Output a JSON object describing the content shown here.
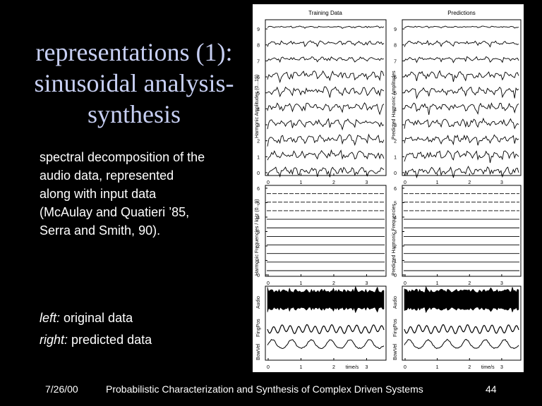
{
  "slide": {
    "title_lines": [
      "representations (1):",
      "sinusoidal analysis-",
      "synthesis"
    ],
    "body_lines": [
      "spectral decomposition of the",
      "audio data, represented",
      "along with input data",
      "(McAulay and Quatieri ’85,",
      "Serra and Smith, 90)."
    ],
    "left_label": "left:",
    "left_text": " original data",
    "right_label": "right:",
    "right_text": " predicted data"
  },
  "footer": {
    "date": "7/26/00",
    "center": "Probabilistic Characterization and Synthesis of Complex Driven Systems",
    "page": "44"
  },
  "figure": {
    "col_titles": [
      "Training Data",
      "Predictions"
    ],
    "ylabels": {
      "amp_left": "Harmonic Amplitudes (0...19)",
      "amp_right": "Predicted Harmonic Amplitudes",
      "freq_left": "Harmonic Frequencies / kHz (0...9)",
      "freq_right": "Predicted Harmonic Frequencies",
      "audio": "Audio",
      "fingpos": "FingPos",
      "bowvel": "BowVel"
    },
    "amp_ticks": [
      "0",
      "1",
      "2",
      "3",
      "4",
      "5",
      "6",
      "7",
      "8",
      "9"
    ],
    "freq_ticks": [
      "0",
      "1",
      "2",
      "3",
      "4",
      "5",
      "6"
    ],
    "x_ticks": [
      "0",
      "1",
      "2",
      "3"
    ],
    "xlabel": "time/s"
  }
}
